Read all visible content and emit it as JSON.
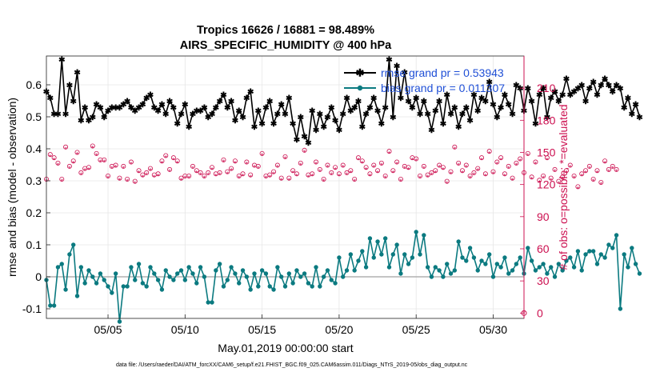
{
  "chart_data": {
    "type": "line",
    "title": "Tropics 16626 / 16881 = 98.489%",
    "subtitle": "AIRS_SPECIFIC_HUMIDITY @ 400 hPa",
    "xlabel": "May.01,2019 00:00:00 start",
    "ylabel_left": "rmse and bias (model - observation)",
    "ylabel_right": "# of obs: o=possible; *=evaluated",
    "footnote": "data file: /Users/raeder/DAI/ATM_forcXX/CAM6_setup/f.e21.FHIST_BGC.f09_025.CAM6assim.011/Diags_NTrS_2019-05/obs_diag_output.nc",
    "xlim": [
      1,
      32
    ],
    "ylim_left": [
      -0.13,
      0.69
    ],
    "ylim_right": [
      -5,
      240
    ],
    "x_ticks": [
      5,
      10,
      15,
      20,
      25,
      30
    ],
    "x_tick_labels": [
      "05/05",
      "05/10",
      "05/15",
      "05/20",
      "05/25",
      "05/30"
    ],
    "y_ticks_left": [
      -0.1,
      0,
      0.1,
      0.2,
      0.3,
      0.4,
      0.5,
      0.6
    ],
    "y_tick_labels_left": [
      "-0.1",
      "0",
      "0.1",
      "0.2",
      "0.3",
      "0.4",
      "0.5",
      "0.6"
    ],
    "y_ticks_right": [
      0,
      30,
      60,
      90,
      120,
      150,
      180,
      210
    ],
    "y_tick_labels_right": [
      "0",
      "30",
      "60",
      "90",
      "120",
      "150",
      "180",
      "210"
    ],
    "grid": true,
    "legend_position": "top-right",
    "legend": [
      {
        "label": "rmse grand pr = 0.53943",
        "color": "#000000"
      },
      {
        "label": "bias grand pr = 0.011307",
        "color": "#0b7a80"
      }
    ],
    "colors": {
      "rmse": "#000000",
      "bias": "#0b7a80",
      "obs": "#cc1050",
      "zero_line": "#b0b0b0"
    },
    "series": [
      {
        "name": "rmse",
        "axis": "left",
        "style": "line-star",
        "x_start": 1.0,
        "x_step": 0.25,
        "values": [
          0.58,
          0.56,
          0.51,
          0.51,
          0.68,
          0.51,
          0.6,
          0.55,
          0.64,
          0.49,
          0.53,
          0.49,
          0.5,
          0.54,
          0.53,
          0.5,
          0.52,
          0.53,
          0.53,
          0.53,
          0.54,
          0.55,
          0.53,
          0.52,
          0.53,
          0.54,
          0.56,
          0.57,
          0.53,
          0.52,
          0.54,
          0.51,
          0.55,
          0.53,
          0.48,
          0.51,
          0.54,
          0.47,
          0.51,
          0.52,
          0.52,
          0.53,
          0.5,
          0.51,
          0.53,
          0.55,
          0.57,
          0.53,
          0.55,
          0.49,
          0.52,
          0.5,
          0.56,
          0.58,
          0.47,
          0.52,
          0.48,
          0.53,
          0.55,
          0.48,
          0.51,
          0.54,
          0.51,
          0.56,
          0.48,
          0.43,
          0.5,
          0.44,
          0.42,
          0.52,
          0.46,
          0.51,
          0.47,
          0.5,
          0.53,
          0.49,
          0.46,
          0.51,
          0.56,
          0.52,
          0.53,
          0.55,
          0.47,
          0.51,
          0.53,
          0.56,
          0.52,
          0.48,
          0.53,
          0.68,
          0.5,
          0.66,
          0.56,
          0.64,
          0.55,
          0.53,
          0.56,
          0.51,
          0.55,
          0.51,
          0.46,
          0.52,
          0.55,
          0.48,
          0.57,
          0.51,
          0.53,
          0.47,
          0.51,
          0.53,
          0.49,
          0.57,
          0.52,
          0.56,
          0.55,
          0.61,
          0.54,
          0.5,
          0.53,
          0.57,
          0.54,
          0.51,
          0.6,
          0.59,
          0.52,
          0.59,
          0.55,
          0.48,
          0.57,
          0.59,
          0.5,
          0.56,
          0.58,
          0.55,
          0.57,
          0.62,
          0.57,
          0.58,
          0.59,
          0.6,
          0.55,
          0.59,
          0.61,
          0.57,
          0.6,
          0.62,
          0.6,
          0.58,
          0.6,
          0.59,
          0.53,
          0.56,
          0.51,
          0.54,
          0.5
        ]
      },
      {
        "name": "bias",
        "axis": "left",
        "style": "line-dot",
        "x_start": 1.0,
        "x_step": 0.25,
        "values": [
          -0.01,
          -0.09,
          -0.09,
          0.03,
          0.04,
          -0.04,
          0.07,
          0.1,
          -0.06,
          0.03,
          -0.02,
          0.02,
          0.0,
          -0.02,
          0.01,
          -0.01,
          -0.03,
          -0.05,
          0.01,
          -0.14,
          -0.03,
          -0.03,
          0.03,
          -0.01,
          0.04,
          -0.02,
          -0.03,
          0.03,
          0.01,
          -0.01,
          -0.04,
          0.02,
          0.0,
          -0.01,
          0.01,
          0.02,
          -0.01,
          0.03,
          0.01,
          -0.02,
          0.03,
          0.0,
          -0.08,
          -0.08,
          0.02,
          0.04,
          -0.03,
          -0.01,
          0.03,
          0.01,
          -0.02,
          0.02,
          0.0,
          -0.04,
          0.01,
          -0.03,
          0.02,
          0.01,
          -0.03,
          -0.04,
          0.03,
          0.0,
          -0.03,
          0.01,
          -0.02,
          0.02,
          0.0,
          0.01,
          -0.02,
          -0.03,
          0.03,
          -0.03,
          0.0,
          0.02,
          -0.01,
          -0.02,
          0.06,
          0.0,
          0.02,
          0.07,
          0.02,
          0.05,
          0.08,
          0.03,
          0.12,
          0.06,
          0.11,
          0.07,
          0.12,
          0.03,
          0.07,
          0.1,
          0.01,
          0.07,
          0.04,
          0.06,
          0.14,
          0.07,
          0.13,
          0.03,
          0.0,
          0.03,
          0.02,
          0.0,
          0.04,
          0.01,
          0.02,
          0.11,
          0.06,
          0.05,
          0.09,
          0.06,
          0.02,
          0.05,
          0.04,
          0.07,
          0.0,
          0.04,
          0.03,
          0.06,
          0.01,
          0.02,
          0.04,
          0.06,
          0.01,
          0.09,
          0.05,
          0.02,
          0.03,
          0.04,
          0.01,
          0.03,
          0.0,
          0.04,
          0.02,
          0.05,
          0.06,
          0.03,
          0.08,
          0.02,
          0.07,
          0.08,
          0.08,
          0.04,
          0.07,
          0.06,
          0.1,
          0.09,
          0.13,
          -0.1,
          0.07,
          0.03,
          0.09,
          0.04,
          0.01
        ]
      },
      {
        "name": "obs possible",
        "axis": "right",
        "style": "circle",
        "x_start": 1.0,
        "x_step": 0.25,
        "values": [
          125,
          148,
          145,
          140,
          125,
          155,
          137,
          142,
          150,
          131,
          135,
          136,
          156,
          149,
          143,
          143,
          128,
          137,
          138,
          126,
          137,
          125,
          141,
          123,
          133,
          129,
          131,
          135,
          129,
          130,
          142,
          147,
          134,
          145,
          142,
          126,
          128,
          128,
          137,
          133,
          131,
          128,
          131,
          136,
          130,
          131,
          143,
          132,
          135,
          142,
          128,
          130,
          141,
          129,
          138,
          137,
          149,
          128,
          129,
          132,
          138,
          126,
          146,
          126,
          133,
          130,
          140,
          152,
          129,
          130,
          141,
          134,
          125,
          138,
          131,
          136,
          130,
          138,
          131,
          133,
          125,
          145,
          142,
          136,
          130,
          138,
          133,
          140,
          128,
          151,
          133,
          141,
          125,
          137,
          136,
          145,
          144,
          128,
          137,
          129,
          131,
          133,
          138,
          136,
          123,
          132,
          155,
          140,
          133,
          138,
          128,
          131,
          135,
          145,
          130,
          151,
          132,
          141,
          145,
          130,
          137,
          126,
          140,
          144,
          131,
          149,
          127,
          141,
          124,
          128,
          145,
          126,
          134,
          123,
          127,
          133,
          138,
          128,
          118,
          130,
          133,
          137,
          125,
          133,
          122,
          142,
          134,
          137,
          134
        ]
      },
      {
        "name": "obs evaluated",
        "axis": "right",
        "style": "star",
        "x_start": 1.0,
        "x_step": 0.25,
        "values": [
          123,
          146,
          143,
          138,
          123,
          153,
          135,
          140,
          148,
          129,
          133,
          134,
          154,
          147,
          141,
          141,
          126,
          135,
          136,
          124,
          135,
          123,
          139,
          121,
          131,
          127,
          129,
          133,
          127,
          128,
          140,
          145,
          132,
          143,
          140,
          124,
          126,
          126,
          135,
          131,
          129,
          126,
          129,
          134,
          128,
          129,
          141,
          130,
          133,
          140,
          126,
          128,
          139,
          127,
          136,
          135,
          147,
          126,
          127,
          130,
          136,
          124,
          144,
          124,
          131,
          128,
          138,
          150,
          127,
          128,
          139,
          132,
          123,
          136,
          129,
          134,
          128,
          136,
          129,
          131,
          123,
          143,
          140,
          134,
          128,
          136,
          131,
          138,
          126,
          149,
          131,
          139,
          123,
          135,
          134,
          143,
          142,
          126,
          135,
          127,
          129,
          131,
          136,
          134,
          121,
          130,
          153,
          138,
          131,
          136,
          126,
          129,
          133,
          143,
          128,
          149,
          130,
          139,
          143,
          128,
          135,
          124,
          138,
          142,
          129,
          147,
          125,
          139,
          122,
          126,
          143,
          124,
          132,
          121,
          125,
          131,
          136,
          126,
          116,
          128,
          131,
          135,
          123,
          131,
          120,
          140,
          132,
          135,
          132
        ]
      }
    ],
    "extra_marker": {
      "label": "obs at end",
      "x": 32,
      "y_right": 0
    }
  }
}
